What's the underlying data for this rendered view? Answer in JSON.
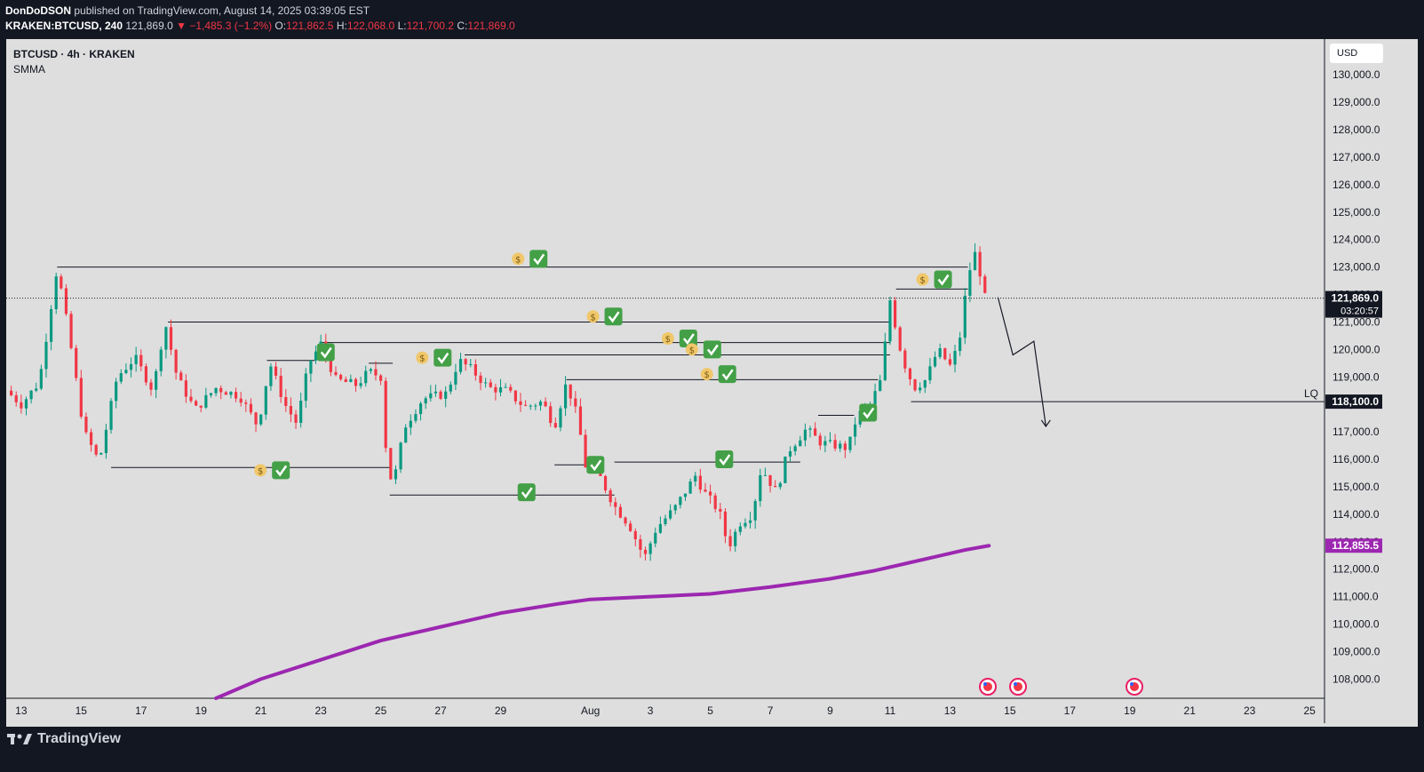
{
  "header": {
    "author": "DonDoDSON",
    "published": "published on TradingView.com, August 14, 2025 03:39:05 EST",
    "symbol": "KRAKEN:BTCUSD, 240",
    "last": "121,869.0",
    "change": "−1,485.3 (−1.2%)",
    "o_label": "O:",
    "o_val": "121,862.5",
    "h_label": "H:",
    "h_val": "122,068.0",
    "l_label": "L:",
    "l_val": "121,700.2",
    "c_label": "C:",
    "c_val": "121,869.0"
  },
  "legend": {
    "title": "BTCUSD · 4h · KRAKEN",
    "indicator": "SMMA"
  },
  "currency": "USD",
  "brand": "TradingView",
  "colors": {
    "up": "#089981",
    "down": "#f23645",
    "smma": "#9c27b0",
    "background": "#dedede",
    "panel": "#131722"
  },
  "chart_data": {
    "type": "candlestick",
    "title": "BTCUSD · 4h · KRAKEN",
    "y_range": [
      107300,
      131300
    ],
    "y_ticks": [
      "108,000.0",
      "109,000.0",
      "110,000.0",
      "111,000.0",
      "112,000.0",
      "113,000.0",
      "114,000.0",
      "115,000.0",
      "116,000.0",
      "117,000.0",
      "118,000.0",
      "119,000.0",
      "120,000.0",
      "121,000.0",
      "122,000.0",
      "123,000.0",
      "124,000.0",
      "125,000.0",
      "126,000.0",
      "127,000.0",
      "128,000.0",
      "129,000.0",
      "130,000.0"
    ],
    "x_range": [
      12.5,
      56.5
    ],
    "x_ticks": [
      {
        "day": 13,
        "label": "13"
      },
      {
        "day": 15,
        "label": "15"
      },
      {
        "day": 17,
        "label": "17"
      },
      {
        "day": 19,
        "label": "19"
      },
      {
        "day": 21,
        "label": "21"
      },
      {
        "day": 23,
        "label": "23"
      },
      {
        "day": 25,
        "label": "25"
      },
      {
        "day": 27,
        "label": "27"
      },
      {
        "day": 29,
        "label": "29"
      },
      {
        "day": 32,
        "label": "Aug"
      },
      {
        "day": 34,
        "label": "3"
      },
      {
        "day": 36,
        "label": "5"
      },
      {
        "day": 38,
        "label": "7"
      },
      {
        "day": 40,
        "label": "9"
      },
      {
        "day": 42,
        "label": "11"
      },
      {
        "day": 44,
        "label": "13"
      },
      {
        "day": 46,
        "label": "15"
      },
      {
        "day": 48,
        "label": "17"
      },
      {
        "day": 50,
        "label": "19"
      },
      {
        "day": 52,
        "label": "21"
      },
      {
        "day": 54,
        "label": "23"
      },
      {
        "day": 56,
        "label": "25"
      }
    ],
    "price_path": [
      [
        12.5,
        118500
      ],
      [
        13.0,
        118000
      ],
      [
        13.6,
        118800
      ],
      [
        14.2,
        123000
      ],
      [
        14.6,
        120500
      ],
      [
        15.1,
        117000
      ],
      [
        15.6,
        115900
      ],
      [
        16.2,
        119000
      ],
      [
        16.8,
        119700
      ],
      [
        17.4,
        118500
      ],
      [
        17.8,
        121000
      ],
      [
        18.2,
        119000
      ],
      [
        18.8,
        117800
      ],
      [
        19.5,
        118600
      ],
      [
        20.3,
        118300
      ],
      [
        20.9,
        117200
      ],
      [
        21.3,
        119500
      ],
      [
        21.8,
        118000
      ],
      [
        22.2,
        117300
      ],
      [
        22.6,
        119500
      ],
      [
        23.0,
        120200
      ],
      [
        23.5,
        118900
      ],
      [
        24.2,
        118700
      ],
      [
        24.6,
        119200
      ],
      [
        25.0,
        119000
      ],
      [
        25.2,
        116000
      ],
      [
        25.4,
        115000
      ],
      [
        25.8,
        117200
      ],
      [
        26.4,
        118200
      ],
      [
        27.2,
        118400
      ],
      [
        27.6,
        119600
      ],
      [
        28.0,
        119300
      ],
      [
        28.6,
        118600
      ],
      [
        29.2,
        118500
      ],
      [
        29.8,
        117900
      ],
      [
        30.4,
        118100
      ],
      [
        30.8,
        117200
      ],
      [
        31.2,
        118800
      ],
      [
        31.6,
        117400
      ],
      [
        31.8,
        115800
      ],
      [
        32.3,
        115400
      ],
      [
        32.8,
        114300
      ],
      [
        33.3,
        113600
      ],
      [
        33.8,
        112400
      ],
      [
        34.2,
        113500
      ],
      [
        34.8,
        114200
      ],
      [
        35.5,
        115400
      ],
      [
        35.8,
        114800
      ],
      [
        36.3,
        114100
      ],
      [
        36.6,
        112800
      ],
      [
        37.0,
        113700
      ],
      [
        37.4,
        114000
      ],
      [
        37.7,
        115700
      ],
      [
        38.2,
        114800
      ],
      [
        38.6,
        116300
      ],
      [
        39.2,
        117100
      ],
      [
        39.7,
        116600
      ],
      [
        40.2,
        116500
      ],
      [
        40.6,
        116400
      ],
      [
        40.9,
        117600
      ],
      [
        41.3,
        117900
      ],
      [
        41.7,
        118900
      ],
      [
        42.0,
        121800
      ],
      [
        42.4,
        119700
      ],
      [
        42.8,
        118600
      ],
      [
        43.2,
        118900
      ],
      [
        43.6,
        120000
      ],
      [
        44.0,
        119400
      ],
      [
        44.3,
        120200
      ],
      [
        44.6,
        122700
      ],
      [
        44.9,
        123700
      ],
      [
        45.1,
        121900
      ],
      [
        45.25,
        121869
      ]
    ],
    "smma_path": [
      [
        19.5,
        107300
      ],
      [
        21.0,
        108000
      ],
      [
        23.0,
        108700
      ],
      [
        25.0,
        109400
      ],
      [
        27.0,
        109900
      ],
      [
        29.0,
        110400
      ],
      [
        31.0,
        110750
      ],
      [
        32.0,
        110900
      ],
      [
        34.0,
        111000
      ],
      [
        36.0,
        111100
      ],
      [
        38.0,
        111350
      ],
      [
        40.0,
        111650
      ],
      [
        41.5,
        111950
      ],
      [
        42.5,
        112200
      ],
      [
        43.5,
        112450
      ],
      [
        44.5,
        112700
      ],
      [
        45.3,
        112855
      ]
    ],
    "horizontal_levels": [
      {
        "x0": 14.2,
        "x1": 44.6,
        "price": 123000
      },
      {
        "x0": 17.9,
        "x1": 42.0,
        "price": 121000
      },
      {
        "x0": 23.0,
        "x1": 42.0,
        "price": 120250
      },
      {
        "x0": 27.8,
        "x1": 42.0,
        "price": 119800
      },
      {
        "x0": 31.2,
        "x1": 41.6,
        "price": 118900
      },
      {
        "x0": 24.6,
        "x1": 25.4,
        "price": 119500
      },
      {
        "x0": 21.2,
        "x1": 22.8,
        "price": 119600
      },
      {
        "x0": 42.2,
        "x1": 44.6,
        "price": 122200
      },
      {
        "x0": 16.0,
        "x1": 25.3,
        "price": 115700
      },
      {
        "x0": 25.3,
        "x1": 32.8,
        "price": 114700
      },
      {
        "x0": 30.8,
        "x1": 31.8,
        "price": 115800
      },
      {
        "x0": 32.8,
        "x1": 39.0,
        "price": 115900
      },
      {
        "x0": 39.6,
        "x1": 40.8,
        "price": 117600
      },
      {
        "x0": 42.7,
        "x1": 56.5,
        "price": 118100
      }
    ],
    "markers": [
      {
        "day": 30.0,
        "price": 123300,
        "coin": true
      },
      {
        "day": 32.5,
        "price": 121200,
        "coin": true
      },
      {
        "day": 35.0,
        "price": 120400,
        "coin": true
      },
      {
        "day": 35.8,
        "price": 120000,
        "coin": true
      },
      {
        "day": 36.3,
        "price": 119100,
        "coin": true
      },
      {
        "day": 26.8,
        "price": 119700,
        "coin": true
      },
      {
        "day": 22.9,
        "price": 119900,
        "coin": false
      },
      {
        "day": 43.5,
        "price": 122550,
        "coin": true
      },
      {
        "day": 21.4,
        "price": 115600,
        "coin": true
      },
      {
        "day": 31.9,
        "price": 115800,
        "coin": false
      },
      {
        "day": 29.6,
        "price": 114800,
        "coin": false
      },
      {
        "day": 36.2,
        "price": 116000,
        "coin": false
      },
      {
        "day": 41.0,
        "price": 117700,
        "coin": false
      }
    ],
    "projection": [
      [
        45.6,
        121900
      ],
      [
        46.1,
        119800
      ],
      [
        46.8,
        120300
      ],
      [
        47.2,
        117200
      ]
    ],
    "annotations": [
      {
        "text": "LQ",
        "price": 118100
      }
    ],
    "price_labels": [
      {
        "text": "121,869.0",
        "sub": "03:20:57",
        "price": 121869,
        "style": "dark"
      },
      {
        "text": "118,100.0",
        "price": 118100,
        "style": "dark"
      },
      {
        "text": "112,855.5",
        "price": 112855.5,
        "style": "purple"
      }
    ],
    "current_price": 121869.0,
    "countdown": "03:20:57"
  }
}
